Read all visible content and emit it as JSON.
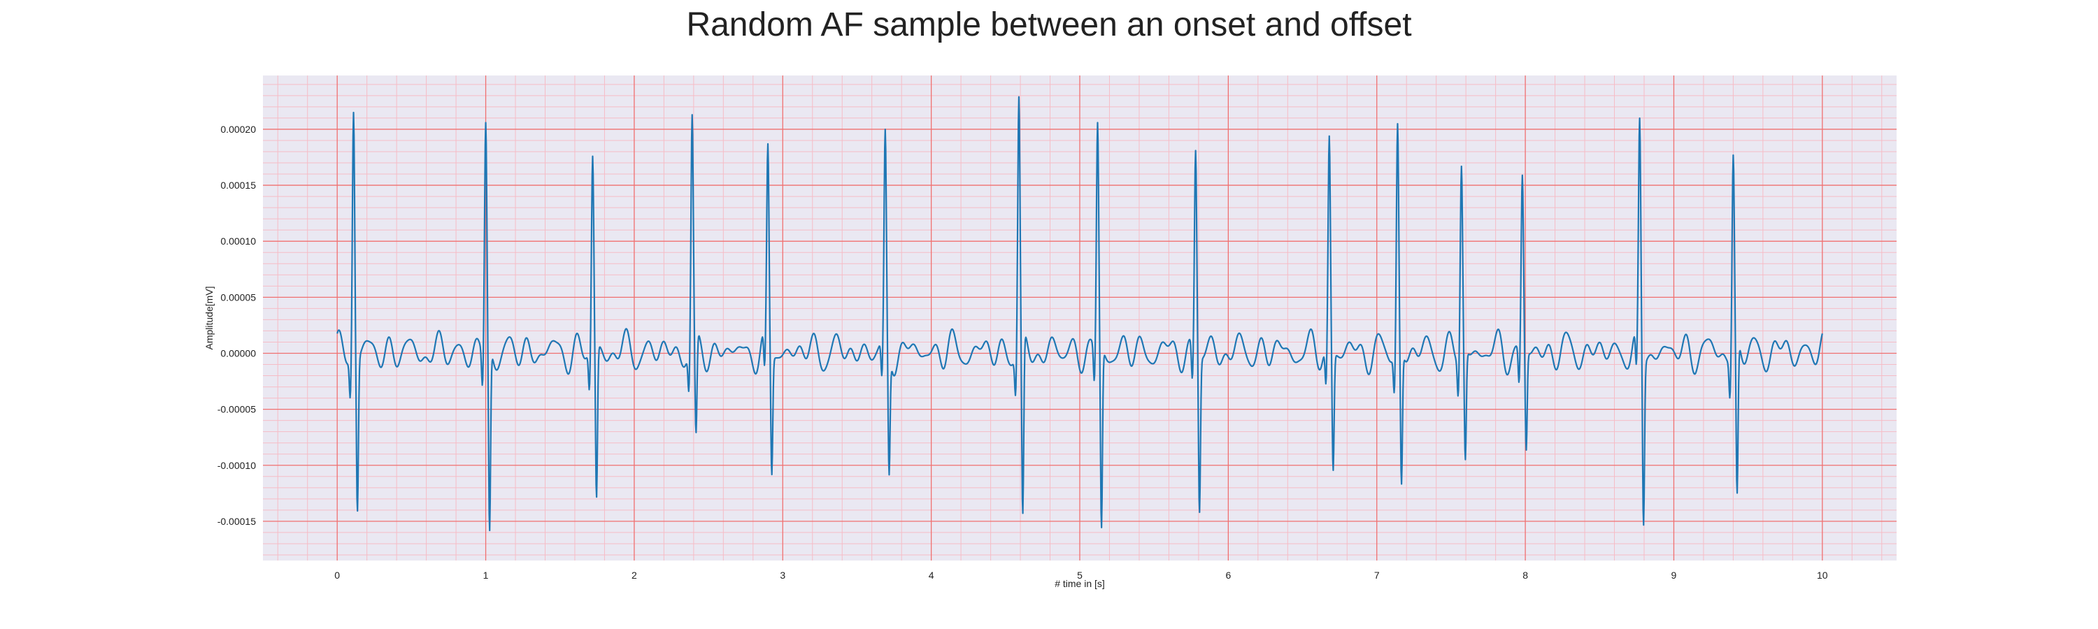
{
  "chart_data": {
    "type": "line",
    "title": "Random AF sample between an onset and offset",
    "xlabel": "# time in [s]",
    "ylabel": "Amplitude[mV]",
    "xlim": [
      -0.5,
      10.5
    ],
    "ylim": [
      -0.000185,
      0.000248
    ],
    "x_ticks": [
      0,
      1,
      2,
      3,
      4,
      5,
      6,
      7,
      8,
      9,
      10
    ],
    "x_tick_labels": [
      "0",
      "1",
      "2",
      "3",
      "4",
      "5",
      "6",
      "7",
      "8",
      "9",
      "10"
    ],
    "y_ticks": [
      -0.00015,
      -0.0001,
      -5e-05,
      0,
      5e-05,
      0.0001,
      0.00015,
      0.0002
    ],
    "y_tick_labels": [
      "-0.00015",
      "-0.00010",
      "-0.00005",
      "0.00000",
      "0.00005",
      "0.00010",
      "0.00015",
      "0.00020"
    ],
    "grid": true,
    "series": [
      {
        "color": "#1f77b4",
        "beats": [
          {
            "t": 0.11,
            "r": 0.000215,
            "s": -0.000137
          },
          {
            "t": 1.0,
            "r": 0.000206,
            "s": -0.000166
          },
          {
            "t": 1.72,
            "r": 0.000176,
            "s": -0.000136
          },
          {
            "t": 2.39,
            "r": 0.000213,
            "s": -9e-05
          },
          {
            "t": 2.9,
            "r": 0.000187,
            "s": -0.000108
          },
          {
            "t": 3.69,
            "r": 0.0002,
            "s": -0.000111
          },
          {
            "t": 4.59,
            "r": 0.000229,
            "s": -0.000163
          },
          {
            "t": 5.12,
            "r": 0.000206,
            "s": -0.000163
          },
          {
            "t": 5.78,
            "r": 0.000181,
            "s": -0.000139
          },
          {
            "t": 6.68,
            "r": 0.000194,
            "s": -0.000106
          },
          {
            "t": 7.14,
            "r": 0.000205,
            "s": -0.000122
          },
          {
            "t": 7.57,
            "r": 0.000167,
            "s": -0.0001
          },
          {
            "t": 7.98,
            "r": 0.000159,
            "s": -9e-05
          },
          {
            "t": 8.77,
            "r": 0.00021,
            "s": -0.00015
          },
          {
            "t": 9.4,
            "r": 0.000177,
            "s": -0.000139
          }
        ],
        "baseline_range": [
          -3e-05,
          4.5e-05
        ],
        "t_start": 0.0,
        "t_end": 10.0
      }
    ]
  },
  "colors": {
    "plot_bg": "#eae8f2",
    "major_grid": "#f07070",
    "minor_grid": "#f6bcc6",
    "line": "#1f77b4"
  }
}
